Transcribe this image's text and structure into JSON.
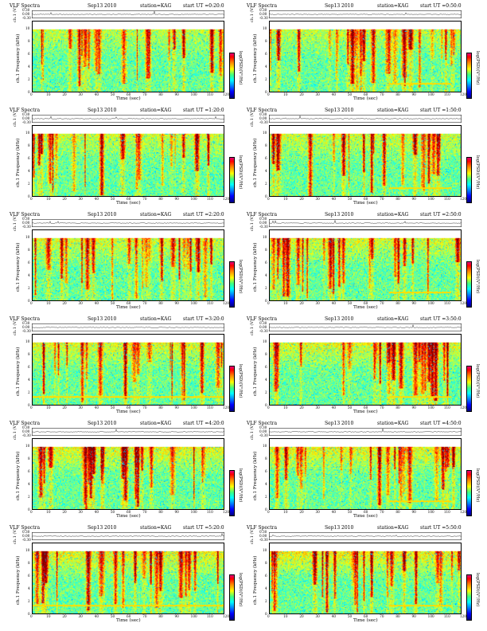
{
  "header": {
    "product": "VLF Spectra",
    "date": "Sep13 2010",
    "station": "station=KAG"
  },
  "labels": {
    "ch_label": "ch.1 (V)",
    "freq_label": "ch.1 Frequency (kHz)",
    "time_label": "Time (sec)",
    "colorbar_label": "log(PSD)(V²/Hz)"
  },
  "chart_data": {
    "type": "heatmap",
    "panel_count": 12,
    "start_times": [
      "start UT =0:20:0",
      "start UT =0:50:0",
      "start UT =1:20:0",
      "start UT =1:50:0",
      "start UT =2:20:0",
      "start UT =2:50:0",
      "start UT =3:20:0",
      "start UT =3:50:0",
      "start UT =4:20:0",
      "start UT =4:50:0",
      "start UT =5:20:0",
      "start UT =5:50:0"
    ],
    "x_range": [
      0,
      120
    ],
    "x_ticks": [
      "0",
      "10",
      "20",
      "30",
      "40",
      "50",
      "60",
      "70",
      "80",
      "90",
      "100",
      "110",
      "120"
    ],
    "y_range_khz": [
      0,
      10
    ],
    "y_ticks": [
      "0",
      "2",
      "4",
      "6",
      "8",
      "10"
    ],
    "ch_ticks": [
      "0.30",
      "0.00",
      "-0.30"
    ],
    "colorbar_scale": "jet (blue low, red high)",
    "colors": {
      "low": "#0000ff",
      "background": "#20d0a0",
      "mid": "#ffff00",
      "high": "#ff0000"
    }
  }
}
